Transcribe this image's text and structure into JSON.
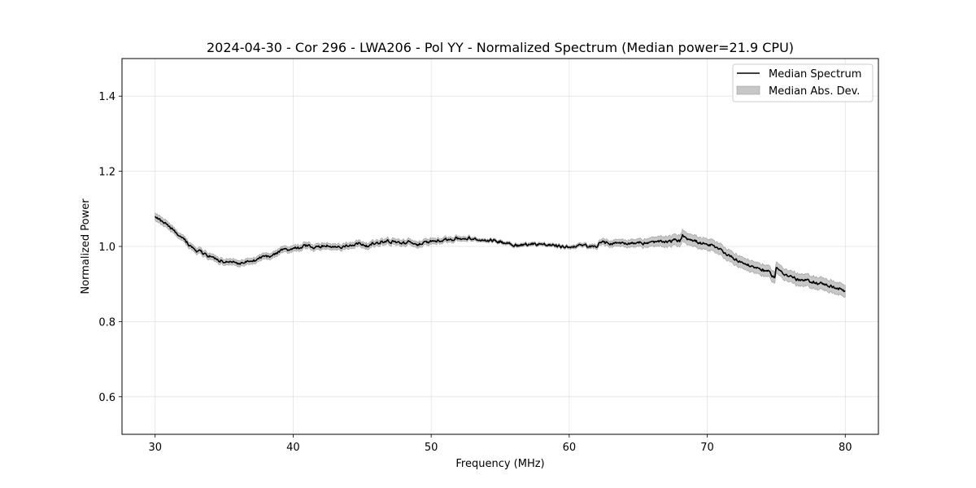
{
  "chart_data": {
    "type": "line",
    "title": "2024-04-30 - Cor 296 - LWA206 - Pol YY - Normalized Spectrum (Median power=21.9 CPU)",
    "xlabel": "Frequency (MHz)",
    "ylabel": "Normalized Power",
    "xlim": [
      27.6,
      82.4
    ],
    "ylim": [
      0.5,
      1.5
    ],
    "xticks": [
      30,
      40,
      50,
      60,
      70,
      80
    ],
    "yticks": [
      0.6,
      0.8,
      1.0,
      1.2,
      1.4
    ],
    "xtick_labels": [
      "30",
      "40",
      "50",
      "60",
      "70",
      "80"
    ],
    "ytick_labels": [
      "0.6",
      "0.8",
      "1.0",
      "1.2",
      "1.4"
    ],
    "grid": true,
    "legend_position": "top-right",
    "series": [
      {
        "name": "Median Spectrum",
        "kind": "line",
        "color": "#000000",
        "x": [
          30.0,
          30.5,
          31.0,
          31.5,
          32.0,
          32.5,
          33.0,
          33.5,
          34.0,
          34.5,
          35.0,
          35.5,
          36.0,
          36.5,
          37.0,
          37.5,
          38.0,
          38.5,
          39.0,
          39.5,
          40.0,
          40.5,
          41.0,
          41.5,
          42.0,
          42.5,
          43.0,
          43.5,
          44.0,
          44.5,
          45.0,
          45.5,
          46.0,
          46.5,
          47.0,
          47.5,
          48.0,
          48.5,
          49.0,
          49.5,
          50.0,
          50.5,
          51.0,
          51.5,
          52.0,
          52.5,
          53.0,
          53.5,
          54.0,
          54.5,
          55.0,
          55.5,
          56.0,
          56.5,
          57.0,
          57.5,
          58.0,
          58.5,
          59.0,
          59.5,
          60.0,
          60.5,
          61.0,
          61.5,
          62.0,
          62.2,
          62.5,
          63.0,
          63.5,
          64.0,
          64.5,
          65.0,
          65.5,
          66.0,
          66.5,
          67.0,
          67.5,
          68.0,
          68.2,
          68.5,
          69.0,
          69.5,
          70.0,
          70.5,
          71.0,
          71.5,
          72.0,
          72.5,
          73.0,
          73.5,
          74.0,
          74.5,
          74.9,
          75.0,
          75.5,
          76.0,
          76.5,
          77.0,
          77.5,
          78.0,
          78.5,
          79.0,
          79.5,
          80.0
        ],
        "y": [
          1.078,
          1.068,
          1.052,
          1.037,
          1.018,
          1.002,
          0.988,
          0.982,
          0.972,
          0.965,
          0.96,
          0.958,
          0.957,
          0.958,
          0.963,
          0.967,
          0.973,
          0.98,
          0.987,
          0.992,
          0.995,
          0.998,
          1.002,
          0.998,
          0.999,
          1.0,
          0.999,
          0.998,
          1.006,
          1.007,
          1.008,
          1.004,
          1.008,
          1.012,
          1.013,
          1.01,
          1.008,
          1.01,
          1.007,
          1.01,
          1.012,
          1.016,
          1.019,
          1.02,
          1.021,
          1.02,
          1.018,
          1.016,
          1.016,
          1.015,
          1.013,
          1.01,
          1.006,
          1.004,
          1.006,
          1.006,
          1.008,
          1.005,
          1.003,
          1.0,
          0.999,
          1.001,
          1.002,
          1.0,
          0.999,
          1.012,
          1.008,
          1.008,
          1.008,
          1.009,
          1.008,
          1.009,
          1.01,
          1.011,
          1.013,
          1.014,
          1.016,
          1.015,
          1.03,
          1.024,
          1.016,
          1.008,
          1.002,
          0.999,
          0.99,
          0.978,
          0.966,
          0.958,
          0.95,
          0.943,
          0.938,
          0.932,
          0.918,
          0.944,
          0.93,
          0.92,
          0.913,
          0.91,
          0.907,
          0.903,
          0.899,
          0.893,
          0.887,
          0.878
        ]
      },
      {
        "name": "Median Abs. Dev.",
        "kind": "band",
        "color": "#c7c7c7",
        "mad": [
          0.01,
          0.01,
          0.009,
          0.008,
          0.008,
          0.008,
          0.008,
          0.008,
          0.008,
          0.008,
          0.008,
          0.008,
          0.008,
          0.008,
          0.008,
          0.008,
          0.008,
          0.008,
          0.008,
          0.008,
          0.008,
          0.008,
          0.008,
          0.008,
          0.008,
          0.008,
          0.008,
          0.008,
          0.008,
          0.008,
          0.008,
          0.008,
          0.008,
          0.008,
          0.008,
          0.008,
          0.008,
          0.008,
          0.008,
          0.008,
          0.008,
          0.007,
          0.007,
          0.007,
          0.006,
          0.006,
          0.005,
          0.004,
          0.004,
          0.004,
          0.004,
          0.004,
          0.004,
          0.004,
          0.004,
          0.004,
          0.004,
          0.004,
          0.004,
          0.004,
          0.004,
          0.005,
          0.005,
          0.005,
          0.006,
          0.007,
          0.008,
          0.008,
          0.009,
          0.009,
          0.01,
          0.01,
          0.011,
          0.012,
          0.013,
          0.014,
          0.014,
          0.015,
          0.015,
          0.015,
          0.015,
          0.015,
          0.015,
          0.015,
          0.015,
          0.015,
          0.015,
          0.015,
          0.015,
          0.015,
          0.015,
          0.015,
          0.015,
          0.015,
          0.015,
          0.015,
          0.016,
          0.016,
          0.016,
          0.016,
          0.016,
          0.016,
          0.016,
          0.016
        ]
      }
    ]
  }
}
